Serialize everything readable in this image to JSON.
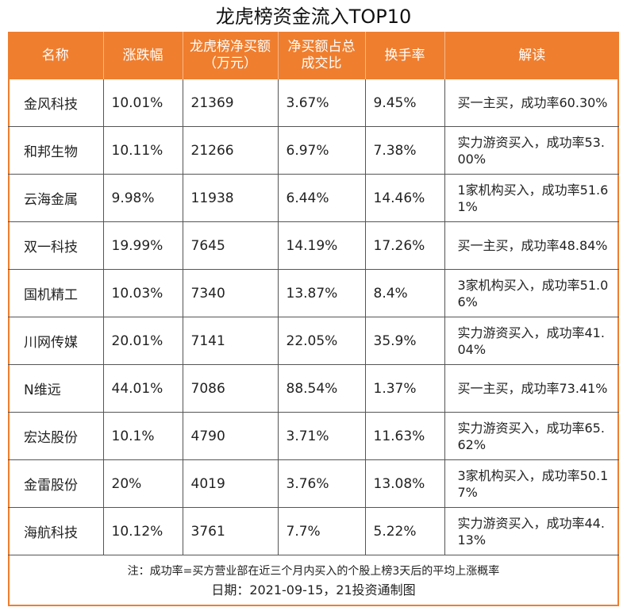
{
  "title": "龙虎榜资金流入TOP10",
  "columns": [
    "名称",
    "涨跌幅",
    "龙虎榜净买额（万元）",
    "净买额占总成交比",
    "换手率",
    "解读"
  ],
  "rows": [
    {
      "name": "金风科技",
      "change": "10.01%",
      "net_buy": "21369",
      "ratio": "3.67%",
      "turnover": "9.45%",
      "note": "买一主买，成功率60.30%"
    },
    {
      "name": "和邦生物",
      "change": "10.11%",
      "net_buy": "21266",
      "ratio": "6.97%",
      "turnover": "7.38%",
      "note": "实力游资买入，成功率53.00%"
    },
    {
      "name": "云海金属",
      "change": "9.98%",
      "net_buy": "11938",
      "ratio": "6.44%",
      "turnover": "14.46%",
      "note": "1家机构买入，成功率51.61%"
    },
    {
      "name": "双一科技",
      "change": "19.99%",
      "net_buy": "7645",
      "ratio": "14.19%",
      "turnover": "17.26%",
      "note": "买一主买，成功率48.84%"
    },
    {
      "name": "国机精工",
      "change": "10.03%",
      "net_buy": "7340",
      "ratio": "13.87%",
      "turnover": "8.4%",
      "note": "3家机构买入，成功率51.06%"
    },
    {
      "name": "川网传媒",
      "change": "20.01%",
      "net_buy": "7141",
      "ratio": "22.05%",
      "turnover": "35.9%",
      "note": "实力游资买入，成功率41.04%"
    },
    {
      "name": "N维远",
      "change": "44.01%",
      "net_buy": "7086",
      "ratio": "88.54%",
      "turnover": "1.37%",
      "note": "买一主买，成功率73.41%"
    },
    {
      "name": "宏达股份",
      "change": "10.1%",
      "net_buy": "4790",
      "ratio": "3.71%",
      "turnover": "11.63%",
      "note": "实力游资买入，成功率65.62%"
    },
    {
      "name": "金雷股份",
      "change": "20%",
      "net_buy": "4019",
      "ratio": "3.76%",
      "turnover": "13.08%",
      "note": "3家机构买入，成功率50.17%"
    },
    {
      "name": "海航科技",
      "change": "10.12%",
      "net_buy": "3761",
      "ratio": "7.7%",
      "turnover": "5.22%",
      "note": "实力游资买入，成功率44.13%"
    }
  ],
  "footnote": "注：成功率=买方营业部在近三个月内买入的个股上榜3天后的平均上涨概率",
  "date_line": "日期：2021-09-15，21投资通制图",
  "colors": {
    "header_bg": "#ef7e2e",
    "header_text": "#ffffff",
    "border": "#ef7e2e"
  }
}
